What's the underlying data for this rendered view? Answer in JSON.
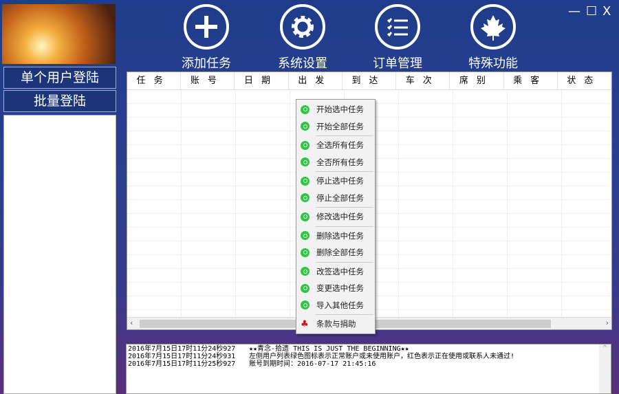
{
  "window": {
    "minimize": "—",
    "maximize": "☐",
    "close": "X"
  },
  "toolbar": [
    {
      "label": "添加任务",
      "icon": "plus-icon"
    },
    {
      "label": "系统设置",
      "icon": "gear-icon"
    },
    {
      "label": "订单管理",
      "icon": "list-icon"
    },
    {
      "label": "特殊功能",
      "icon": "maple-leaf-icon"
    }
  ],
  "sidebar": {
    "single_login": "单个用户登陆",
    "batch_login": "批量登陆"
  },
  "table": {
    "columns": [
      "任务",
      "账号",
      "日期",
      "出发",
      "到达",
      "车次",
      "席别",
      "乘客",
      "状态"
    ]
  },
  "context_menu": {
    "items": [
      "开始选中任务",
      "开始全部任务",
      "全选所有任务",
      "全否所有任务",
      "停止选中任务",
      "停止全部任务",
      "修改选中任务",
      "删除选中任务",
      "删除全部任务",
      "改签选中任务",
      "变更选中任务",
      "导入其他任务",
      "条款与捐助"
    ],
    "accent": "#2cc840"
  },
  "log": [
    {
      "time": "2016年7月15日17时11分24秒927",
      "msg": "★★青念-拾遗 THIS IS JUST THE BEGINNING★★"
    },
    {
      "time": "2016年7月15日17时11分24秒931",
      "msg": "左侧用户列表绿色图标表示正常账户或未使用账户，红色表示正在使用或联系人未通过!"
    },
    {
      "time": "2016年7月15日17时11分25秒927",
      "msg": "账号到期时间：2016-07-17 21:45:16"
    }
  ]
}
